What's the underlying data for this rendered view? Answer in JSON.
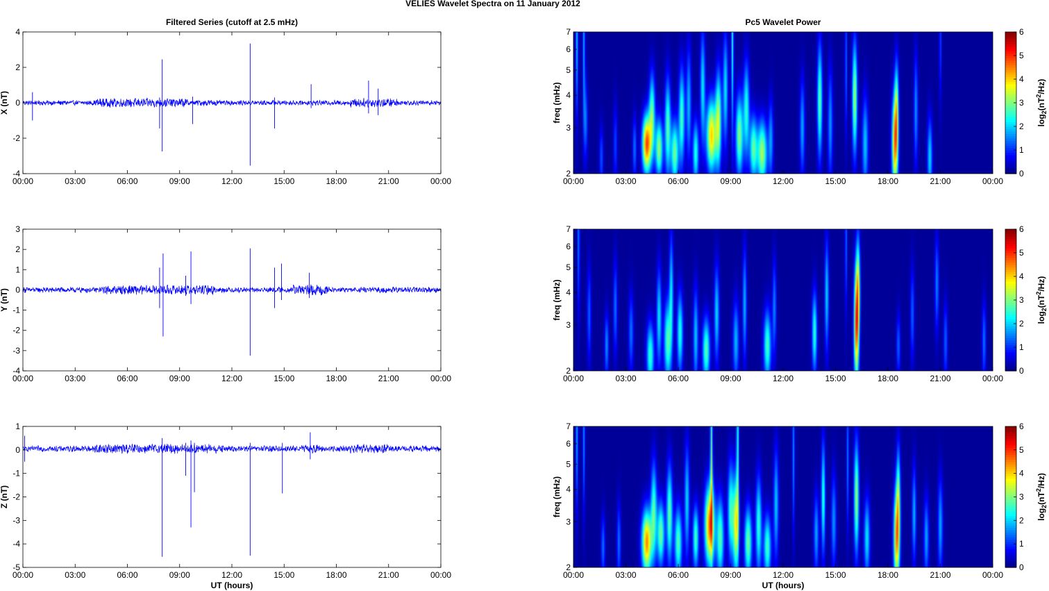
{
  "figure": {
    "title": "VELIES Wavelet Spectra on 11 January   2012",
    "left_title": "Filtered Series (cutoff at 2.5 mHz)",
    "right_title": "Pc5 Wavelet Power"
  },
  "colors": {
    "series": "#0000ff",
    "axis": "#000000",
    "grid_tick": "#000000",
    "spectrum_background": "#00008f"
  },
  "chart_data": [
    {
      "type": "line",
      "id": "ts-x",
      "title": "Filtered Series (cutoff at 2.5 mHz)",
      "ylabel": "X (nT)",
      "xlabel": "",
      "xlim": [
        0,
        24
      ],
      "ylim": [
        -4,
        4
      ],
      "yticks": [
        -4,
        -2,
        0,
        2,
        4
      ],
      "xticks": [
        "00:00",
        "03:00",
        "06:00",
        "09:00",
        "12:00",
        "15:00",
        "18:00",
        "21:00",
        "00:00"
      ],
      "baseline": 0.0,
      "noise_amp": 0.12,
      "active_intervals": [
        [
          4.2,
          9.5,
          0.22
        ],
        [
          10.0,
          11.2,
          0.15
        ],
        [
          18.8,
          21.5,
          0.22
        ]
      ],
      "spikes": [
        [
          0.55,
          -1.0,
          0.6
        ],
        [
          8.0,
          2.45,
          -2.75
        ],
        [
          7.85,
          -1.45,
          0.3
        ],
        [
          9.75,
          -1.2,
          0.35
        ],
        [
          13.05,
          3.35,
          -3.55
        ],
        [
          14.45,
          -1.45,
          0.3
        ],
        [
          16.55,
          1.05,
          -0.3
        ],
        [
          19.85,
          1.25,
          -0.6
        ],
        [
          20.4,
          0.8,
          -0.7
        ]
      ]
    },
    {
      "type": "line",
      "id": "ts-y",
      "title": "",
      "ylabel": "Y (nT)",
      "xlabel": "",
      "xlim": [
        0,
        24
      ],
      "ylim": [
        -4,
        3
      ],
      "yticks": [
        -4,
        -3,
        -2,
        -1,
        0,
        1,
        2,
        3
      ],
      "xticks": [
        "00:00",
        "03:00",
        "06:00",
        "09:00",
        "12:00",
        "15:00",
        "18:00",
        "21:00",
        "00:00"
      ],
      "baseline": 0.0,
      "noise_amp": 0.12,
      "active_intervals": [
        [
          4.5,
          11.0,
          0.2
        ],
        [
          15.5,
          17.5,
          0.22
        ]
      ],
      "spikes": [
        [
          7.85,
          1.1,
          -0.9
        ],
        [
          8.05,
          1.8,
          -2.3
        ],
        [
          9.35,
          0.7,
          -0.3
        ],
        [
          9.65,
          1.9,
          -0.7
        ],
        [
          13.05,
          2.05,
          -3.25
        ],
        [
          14.45,
          1.1,
          -0.9
        ],
        [
          14.85,
          1.3,
          -0.5
        ],
        [
          16.45,
          0.85,
          -0.4
        ]
      ]
    },
    {
      "type": "line",
      "id": "ts-z",
      "title": "",
      "ylabel": "Z (nT)",
      "xlabel": "UT (hours)",
      "xlim": [
        0,
        24
      ],
      "ylim": [
        -5,
        1
      ],
      "yticks": [
        -5,
        -4,
        -3,
        -2,
        -1,
        0,
        1
      ],
      "xticks": [
        "00:00",
        "03:00",
        "06:00",
        "09:00",
        "12:00",
        "15:00",
        "18:00",
        "21:00",
        "00:00"
      ],
      "baseline": 0.05,
      "noise_amp": 0.11,
      "active_intervals": [
        [
          4.0,
          11.5,
          0.18
        ],
        [
          16.0,
          17.0,
          0.15
        ],
        [
          18.8,
          21.0,
          0.16
        ]
      ],
      "spikes": [
        [
          0.1,
          -0.5,
          0.6
        ],
        [
          8.0,
          -4.55,
          0.5
        ],
        [
          9.35,
          -1.1,
          0.3
        ],
        [
          9.65,
          -3.3,
          0.4
        ],
        [
          9.85,
          -1.8,
          0.3
        ],
        [
          13.05,
          -4.5,
          0.3
        ],
        [
          14.9,
          -1.85,
          0.3
        ],
        [
          16.5,
          0.75,
          -0.4
        ]
      ]
    },
    {
      "type": "heatmap",
      "id": "spec-x",
      "title": "Pc5 Wavelet Power",
      "ylabel": "freq (mHz)",
      "xlabel": "",
      "xlim": [
        0,
        24
      ],
      "ylim": [
        2,
        7
      ],
      "yscale": "log",
      "yticks": [
        2,
        3,
        4,
        5,
        6,
        7
      ],
      "xticks": [
        "00:00",
        "03:00",
        "06:00",
        "09:00",
        "12:00",
        "15:00",
        "18:00",
        "21:00",
        "00:00"
      ],
      "colorbar": {
        "label": "log2(nT^2/Hz)",
        "range": [
          0,
          6
        ],
        "ticks": [
          0,
          1,
          2,
          3,
          4,
          5,
          6
        ]
      },
      "blobs": [
        [
          0.2,
          6.7,
          1.8,
          0.05,
          0.5
        ],
        [
          0.6,
          6.5,
          1.6,
          0.05,
          0.5
        ],
        [
          0.7,
          3.2,
          1.3,
          0.08,
          0.25
        ],
        [
          1.6,
          2.3,
          1.1,
          0.08,
          0.2
        ],
        [
          2.4,
          2.6,
          1.0,
          0.08,
          0.25
        ],
        [
          3.5,
          2.5,
          1.3,
          0.08,
          0.2
        ],
        [
          4.2,
          2.6,
          4.7,
          0.18,
          0.18
        ],
        [
          4.5,
          3.4,
          2.6,
          0.12,
          0.25
        ],
        [
          4.9,
          2.5,
          3.0,
          0.15,
          0.18
        ],
        [
          5.4,
          3.0,
          2.6,
          0.12,
          0.3
        ],
        [
          5.8,
          2.4,
          2.8,
          0.15,
          0.2
        ],
        [
          6.2,
          3.3,
          2.5,
          0.12,
          0.3
        ],
        [
          6.6,
          3.7,
          1.7,
          0.1,
          0.35
        ],
        [
          7.0,
          2.4,
          2.3,
          0.12,
          0.2
        ],
        [
          7.4,
          4.3,
          2.0,
          0.1,
          0.35
        ],
        [
          7.9,
          2.8,
          3.9,
          0.2,
          0.22
        ],
        [
          8.3,
          3.2,
          3.0,
          0.12,
          0.3
        ],
        [
          8.7,
          4.2,
          2.0,
          0.1,
          0.35
        ],
        [
          9.1,
          6.6,
          2.3,
          0.05,
          0.6
        ],
        [
          9.5,
          2.8,
          2.9,
          0.15,
          0.25
        ],
        [
          9.9,
          3.5,
          2.3,
          0.12,
          0.3
        ],
        [
          10.3,
          2.5,
          2.6,
          0.15,
          0.2
        ],
        [
          10.8,
          2.4,
          3.1,
          0.2,
          0.2
        ],
        [
          11.3,
          2.7,
          1.5,
          0.1,
          0.25
        ],
        [
          13.1,
          3.0,
          1.6,
          0.1,
          0.3
        ],
        [
          14.1,
          3.8,
          2.7,
          0.1,
          0.35
        ],
        [
          14.7,
          3.1,
          1.5,
          0.1,
          0.35
        ],
        [
          15.6,
          5.2,
          1.2,
          0.05,
          0.45
        ],
        [
          16.1,
          3.9,
          3.1,
          0.1,
          0.35
        ],
        [
          16.7,
          2.6,
          1.8,
          0.12,
          0.3
        ],
        [
          18.4,
          2.6,
          4.1,
          0.12,
          0.3
        ],
        [
          18.5,
          3.6,
          2.3,
          0.08,
          0.3
        ],
        [
          19.6,
          3.5,
          1.5,
          0.08,
          0.35
        ],
        [
          20.4,
          2.3,
          1.9,
          0.1,
          0.25
        ],
        [
          21.0,
          6.5,
          1.0,
          0.05,
          0.4
        ]
      ]
    },
    {
      "type": "heatmap",
      "id": "spec-y",
      "title": "",
      "ylabel": "freq (mHz)",
      "xlabel": "",
      "xlim": [
        0,
        24
      ],
      "ylim": [
        2,
        7
      ],
      "yscale": "log",
      "yticks": [
        2,
        3,
        4,
        5,
        6,
        7
      ],
      "xticks": [
        "00:00",
        "03:00",
        "06:00",
        "09:00",
        "12:00",
        "15:00",
        "18:00",
        "21:00",
        "00:00"
      ],
      "colorbar": {
        "label": "log2(nT^2/Hz)",
        "range": [
          0,
          6
        ],
        "ticks": [
          0,
          1,
          2,
          3,
          4,
          5,
          6
        ]
      },
      "blobs": [
        [
          0.3,
          6.6,
          1.4,
          0.05,
          0.5
        ],
        [
          0.9,
          3.3,
          1.2,
          0.08,
          0.3
        ],
        [
          1.9,
          2.5,
          1.5,
          0.08,
          0.2
        ],
        [
          2.4,
          3.5,
          1.3,
          0.08,
          0.3
        ],
        [
          3.3,
          2.8,
          1.3,
          0.1,
          0.25
        ],
        [
          4.4,
          2.3,
          2.4,
          0.15,
          0.2
        ],
        [
          4.9,
          3.2,
          2.0,
          0.1,
          0.3
        ],
        [
          5.4,
          2.6,
          2.6,
          0.15,
          0.25
        ],
        [
          5.6,
          4.1,
          1.9,
          0.08,
          0.35
        ],
        [
          6.1,
          2.8,
          2.3,
          0.12,
          0.25
        ],
        [
          7.0,
          2.7,
          1.8,
          0.1,
          0.3
        ],
        [
          7.6,
          2.4,
          2.6,
          0.15,
          0.2
        ],
        [
          8.2,
          3.3,
          1.9,
          0.1,
          0.3
        ],
        [
          9.3,
          2.6,
          1.7,
          0.12,
          0.25
        ],
        [
          9.8,
          3.6,
          1.7,
          0.08,
          0.35
        ],
        [
          11.1,
          2.5,
          2.5,
          0.15,
          0.22
        ],
        [
          11.5,
          3.5,
          1.4,
          0.08,
          0.3
        ],
        [
          13.8,
          2.8,
          2.4,
          0.1,
          0.25
        ],
        [
          14.5,
          3.9,
          1.9,
          0.08,
          0.35
        ],
        [
          15.6,
          6.3,
          1.2,
          0.05,
          0.45
        ],
        [
          16.2,
          3.0,
          4.7,
          0.1,
          0.35
        ],
        [
          16.3,
          4.4,
          2.4,
          0.08,
          0.3
        ],
        [
          18.6,
          2.5,
          1.2,
          0.08,
          0.2
        ],
        [
          19.4,
          3.3,
          1.2,
          0.08,
          0.3
        ],
        [
          20.8,
          4.3,
          1.4,
          0.08,
          0.3
        ],
        [
          21.3,
          2.6,
          1.2,
          0.08,
          0.25
        ],
        [
          23.5,
          2.6,
          1.3,
          0.08,
          0.25
        ]
      ]
    },
    {
      "type": "heatmap",
      "id": "spec-z",
      "title": "",
      "ylabel": "freq (mHz)",
      "xlabel": "UT (hours)",
      "xlim": [
        0,
        24
      ],
      "ylim": [
        2,
        7
      ],
      "yscale": "log",
      "yticks": [
        2,
        3,
        4,
        5,
        6,
        7
      ],
      "xticks": [
        "00:00",
        "03:00",
        "06:00",
        "09:00",
        "12:00",
        "15:00",
        "18:00",
        "21:00",
        "00:00"
      ],
      "colorbar": {
        "label": "log2(nT^2/Hz)",
        "range": [
          0,
          6
        ],
        "ticks": [
          0,
          1,
          2,
          3,
          4,
          5,
          6
        ]
      },
      "blobs": [
        [
          0.2,
          6.7,
          1.6,
          0.05,
          0.5
        ],
        [
          0.6,
          6.5,
          1.4,
          0.05,
          0.5
        ],
        [
          1.7,
          2.4,
          1.3,
          0.08,
          0.2
        ],
        [
          2.6,
          2.5,
          1.3,
          0.08,
          0.25
        ],
        [
          4.2,
          2.5,
          4.3,
          0.2,
          0.2
        ],
        [
          4.6,
          3.3,
          2.5,
          0.12,
          0.3
        ],
        [
          5.0,
          2.7,
          2.8,
          0.15,
          0.2
        ],
        [
          5.5,
          3.2,
          2.7,
          0.12,
          0.3
        ],
        [
          6.0,
          2.5,
          2.6,
          0.15,
          0.22
        ],
        [
          6.5,
          3.6,
          1.9,
          0.1,
          0.35
        ],
        [
          7.0,
          2.6,
          2.5,
          0.12,
          0.2
        ],
        [
          7.8,
          2.9,
          4.4,
          0.2,
          0.25
        ],
        [
          7.9,
          5.5,
          2.7,
          0.05,
          0.6
        ],
        [
          8.4,
          2.6,
          2.6,
          0.15,
          0.25
        ],
        [
          9.0,
          3.3,
          2.4,
          0.12,
          0.3
        ],
        [
          9.3,
          2.9,
          3.5,
          0.12,
          0.3
        ],
        [
          9.4,
          6.6,
          2.3,
          0.05,
          0.6
        ],
        [
          10.0,
          2.5,
          2.8,
          0.15,
          0.22
        ],
        [
          10.6,
          2.9,
          2.4,
          0.12,
          0.3
        ],
        [
          11.1,
          2.4,
          2.5,
          0.15,
          0.2
        ],
        [
          11.6,
          3.5,
          1.8,
          0.1,
          0.35
        ],
        [
          12.6,
          5.5,
          1.4,
          0.05,
          0.5
        ],
        [
          13.9,
          2.7,
          1.6,
          0.1,
          0.25
        ],
        [
          14.3,
          3.7,
          2.4,
          0.08,
          0.35
        ],
        [
          14.9,
          3.0,
          1.5,
          0.1,
          0.3
        ],
        [
          15.7,
          5.2,
          1.3,
          0.05,
          0.45
        ],
        [
          16.2,
          3.7,
          3.0,
          0.1,
          0.35
        ],
        [
          16.8,
          2.6,
          2.0,
          0.12,
          0.25
        ],
        [
          18.5,
          2.6,
          4.2,
          0.12,
          0.3
        ],
        [
          18.6,
          3.9,
          2.2,
          0.08,
          0.3
        ],
        [
          19.5,
          3.2,
          1.7,
          0.08,
          0.3
        ],
        [
          20.2,
          2.6,
          1.6,
          0.1,
          0.25
        ],
        [
          21.0,
          2.9,
          1.6,
          0.1,
          0.3
        ]
      ]
    }
  ]
}
